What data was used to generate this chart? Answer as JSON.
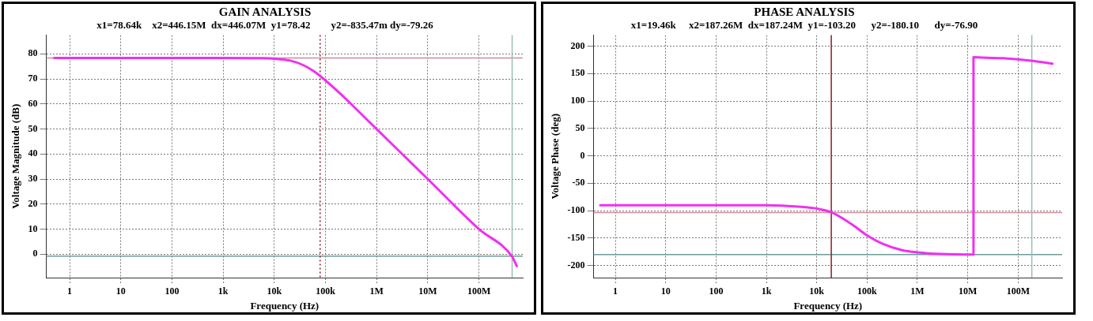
{
  "chart_data": [
    {
      "type": "line",
      "title": "GAIN ANALYSIS",
      "subtitle": "x1=78.64k    x2=446.15M  dx=446.07M  y1=78.42        y2=-835.47m dy=-79.26",
      "xlabel": "Frequency (Hz)",
      "ylabel": "Voltage Magnitude (dB)",
      "log": "x",
      "grid": true,
      "legend": false,
      "line_style": "solid",
      "marker": "none",
      "xlim": [
        0.35,
        720000000
      ],
      "ylim": [
        -9.4,
        87.5
      ],
      "xticks": [
        {
          "value": 1,
          "label": "1"
        },
        {
          "value": 10,
          "label": "10"
        },
        {
          "value": 100,
          "label": "100"
        },
        {
          "value": 1000,
          "label": "1k"
        },
        {
          "value": 10000,
          "label": "10k"
        },
        {
          "value": 100000,
          "label": "100k"
        },
        {
          "value": 1000000,
          "label": "1M"
        },
        {
          "value": 10000000,
          "label": "10M"
        },
        {
          "value": 100000000,
          "label": "100M"
        }
      ],
      "yticks": [
        0,
        10,
        20,
        30,
        40,
        50,
        60,
        70,
        80
      ],
      "ref_lines": [
        {
          "axis": "y",
          "value": 78.42,
          "color": "#d48a98"
        },
        {
          "axis": "y",
          "value": -0.835,
          "color": "#6e9c98"
        },
        {
          "axis": "x",
          "value": 78640,
          "color": "#8b1a2a",
          "line_style": "dotted"
        },
        {
          "axis": "x",
          "value": 446150000,
          "color": "#9dbcb8"
        }
      ],
      "series": [
        {
          "color": "#f030f0",
          "x": [
            0.5,
            10,
            1000,
            5000,
            10000,
            20000,
            38000,
            60000,
            100000,
            200000,
            500000,
            1000000,
            10000000,
            100000000,
            446000000,
            550000000
          ],
          "values": [
            78.4,
            78.4,
            78.4,
            78.3,
            78.1,
            77.4,
            75.4,
            73.0,
            69.4,
            63.9,
            56.0,
            50.0,
            30.0,
            10.0,
            -1.0,
            -4.8
          ]
        }
      ]
    },
    {
      "type": "line",
      "title": "PHASE ANALYSIS",
      "subtitle": "x1=19.46k     x2=187.26M  dx=187.24M  y1=-103.20      y2=-180.10      dy=-76.90",
      "xlabel": "Frequency (Hz)",
      "ylabel": "Voltage Phase (deg)",
      "log": "x",
      "grid": true,
      "legend": false,
      "line_style": "solid",
      "marker": "none",
      "xlim": [
        0.37,
        750000000
      ],
      "ylim": [
        -222,
        220
      ],
      "xticks": [
        {
          "value": 1,
          "label": "1"
        },
        {
          "value": 10,
          "label": "10"
        },
        {
          "value": 100,
          "label": "100"
        },
        {
          "value": 1000,
          "label": "1k"
        },
        {
          "value": 10000,
          "label": "10k"
        },
        {
          "value": 100000,
          "label": "100k"
        },
        {
          "value": 1000000,
          "label": "1M"
        },
        {
          "value": 10000000,
          "label": "10M"
        },
        {
          "value": 100000000,
          "label": "100M"
        }
      ],
      "yticks": [
        -200,
        -150,
        -100,
        -50,
        0,
        50,
        100,
        150,
        200
      ],
      "ref_lines": [
        {
          "axis": "y",
          "value": -103.2,
          "color": "#d48a98"
        },
        {
          "axis": "y",
          "value": -180.1,
          "color": "#6e9c98"
        },
        {
          "axis": "x",
          "value": 19460,
          "color": "#8b1a2a"
        },
        {
          "axis": "x",
          "value": 187260000,
          "color": "#9dbcb8"
        }
      ],
      "series": [
        {
          "color": "#f030f0",
          "x": [
            0.5,
            100,
            1000,
            5000,
            10000,
            19460,
            50000,
            100000,
            200000,
            500000,
            1000000,
            3000000,
            10000000,
            13000000,
            13000000,
            20000000,
            50000000,
            100000000,
            200000000,
            480000000
          ],
          "values": [
            -90,
            -90,
            -90,
            -93,
            -96,
            -103,
            -125,
            -145,
            -160,
            -172,
            -176,
            -179,
            -180,
            -180,
            180,
            179,
            178,
            176,
            173,
            168
          ]
        }
      ]
    }
  ]
}
